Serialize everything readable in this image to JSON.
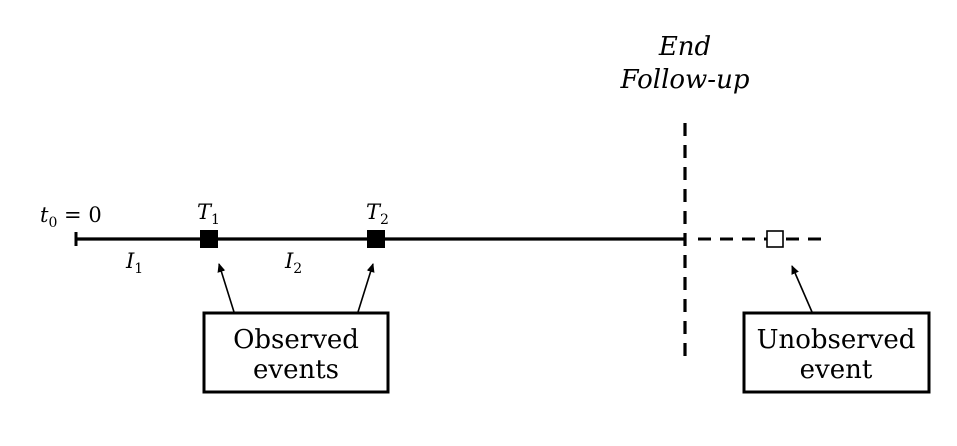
{
  "timeline": {
    "origin_label": "t",
    "origin_sub": "0",
    "origin_eq": " = 0",
    "events": [
      {
        "label": "T",
        "sub": "1"
      },
      {
        "label": "T",
        "sub": "2"
      }
    ],
    "intervals": [
      {
        "label": "I",
        "sub": "1"
      },
      {
        "label": "I",
        "sub": "2"
      }
    ],
    "end_label_line1": "End",
    "end_label_line2": "Follow-up"
  },
  "boxes": {
    "observed": {
      "line1": "Observed",
      "line2": "events"
    },
    "unobserved": {
      "line1": "Unobserved",
      "line2": "event"
    }
  },
  "colors": {
    "ink": "#000000",
    "background": "#ffffff"
  }
}
